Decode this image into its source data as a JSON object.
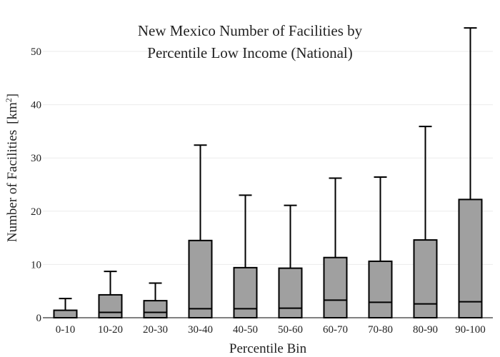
{
  "chart_data": {
    "type": "box",
    "title_lines": [
      "New Mexico Number of Facilities by",
      "Percentile Low Income (National)"
    ],
    "xlabel": "Percentile Bin",
    "ylabel": "Number of Facilities",
    "ylabel_unit_prefix": "[km",
    "ylabel_unit_exp": "2",
    "ylabel_unit_suffix": "]",
    "ylim": [
      0,
      55
    ],
    "yticks": [
      0,
      10,
      20,
      30,
      40,
      50
    ],
    "grid": true,
    "colors": {
      "box_fill": "#a0a0a0",
      "stroke": "#000000",
      "grid": "#ebebeb"
    },
    "categories": [
      "0-10",
      "10-20",
      "20-30",
      "30-40",
      "40-50",
      "50-60",
      "60-70",
      "70-80",
      "80-90",
      "90-100"
    ],
    "boxes": [
      {
        "min": 0,
        "q1": 0,
        "median": 0,
        "q3": 1.4,
        "max": 3.6
      },
      {
        "min": 0,
        "q1": 0,
        "median": 1.0,
        "q3": 4.3,
        "max": 8.7
      },
      {
        "min": 0,
        "q1": 0,
        "median": 1.0,
        "q3": 3.2,
        "max": 6.5
      },
      {
        "min": 0,
        "q1": 0,
        "median": 1.7,
        "q3": 14.5,
        "max": 32.4
      },
      {
        "min": 0,
        "q1": 0,
        "median": 1.7,
        "q3": 9.4,
        "max": 23.0
      },
      {
        "min": 0,
        "q1": 0,
        "median": 1.8,
        "q3": 9.3,
        "max": 21.1
      },
      {
        "min": 0,
        "q1": 0,
        "median": 3.3,
        "q3": 11.3,
        "max": 26.2
      },
      {
        "min": 0,
        "q1": 0,
        "median": 2.9,
        "q3": 10.6,
        "max": 26.4
      },
      {
        "min": 0,
        "q1": 0,
        "median": 2.6,
        "q3": 14.6,
        "max": 35.9
      },
      {
        "min": 0,
        "q1": 0,
        "median": 3.0,
        "q3": 22.2,
        "max": 54.4
      }
    ]
  }
}
